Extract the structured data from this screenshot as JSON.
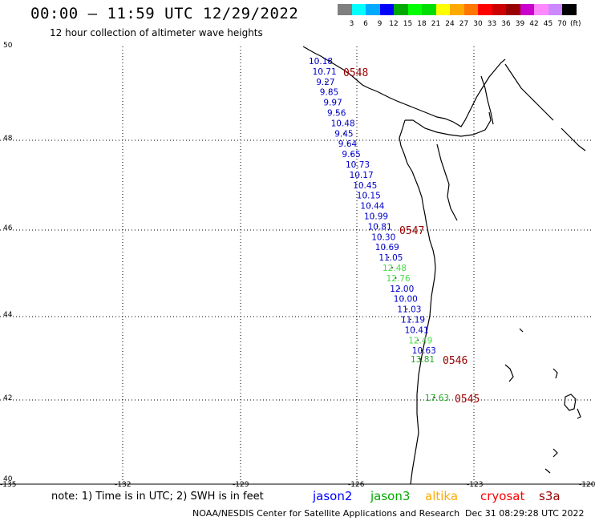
{
  "header": {
    "title": "00:00 – 11:59 UTC 12/29/2022",
    "subtitle": "12 hour collection of altimeter wave heights"
  },
  "scale": {
    "colors": [
      "#7f7f7f",
      "#00ffff",
      "#00aaff",
      "#0000ff",
      "#00aa00",
      "#00ff00",
      "#00dd00",
      "#ffff00",
      "#ffaa00",
      "#ff7700",
      "#ff0000",
      "#cc0000",
      "#990000",
      "#cc00cc",
      "#ff88ff",
      "#cc88ff",
      "#000000"
    ],
    "labels": [
      "3",
      "6",
      "9",
      "12",
      "15",
      "18",
      "21",
      "24",
      "27",
      "30",
      "33",
      "36",
      "39",
      "42",
      "45",
      "70"
    ],
    "unit": "(ft)"
  },
  "axes": {
    "lat_labels": [
      "50",
      "48",
      "46",
      "44",
      "42",
      "40"
    ],
    "lon_labels": [
      "-135",
      "-132",
      "-129",
      "-126",
      "-123",
      "-120"
    ]
  },
  "observations": [
    {
      "v": "10.18",
      "c": "#0000cc"
    },
    {
      "v": "10.71",
      "c": "#0000cc"
    },
    {
      "v": "9.27",
      "c": "#0000cc"
    },
    {
      "v": "9.85",
      "c": "#0000cc"
    },
    {
      "v": "9.97",
      "c": "#0000cc"
    },
    {
      "v": "9.56",
      "c": "#0000cc"
    },
    {
      "v": "10.48",
      "c": "#0000cc"
    },
    {
      "v": "9.45",
      "c": "#0000cc"
    },
    {
      "v": "9.64",
      "c": "#0000cc"
    },
    {
      "v": "9.65",
      "c": "#0000cc"
    },
    {
      "v": "10.73",
      "c": "#0000cc"
    },
    {
      "v": "10.17",
      "c": "#0000cc"
    },
    {
      "v": "10.45",
      "c": "#0000cc"
    },
    {
      "v": "10.15",
      "c": "#0000cc"
    },
    {
      "v": "10.44",
      "c": "#0000cc"
    },
    {
      "v": "10.99",
      "c": "#0000cc"
    },
    {
      "v": "10.81",
      "c": "#0000cc"
    },
    {
      "v": "10.30",
      "c": "#0000cc"
    },
    {
      "v": "10.69",
      "c": "#0000cc"
    },
    {
      "v": "11.05",
      "c": "#0000cc"
    },
    {
      "v": "12.48",
      "c": "#44dd44"
    },
    {
      "v": "12.76",
      "c": "#44dd44"
    },
    {
      "v": "12.00",
      "c": "#0000cc"
    },
    {
      "v": "10.00",
      "c": "#0000cc"
    },
    {
      "v": "11.03",
      "c": "#0000cc"
    },
    {
      "v": "11.19",
      "c": "#0000cc"
    },
    {
      "v": "10.41",
      "c": "#0000cc"
    },
    {
      "v": "12.49",
      "c": "#44dd44"
    },
    {
      "v": "10.63",
      "c": "#0000cc"
    },
    {
      "v": "13.81",
      "c": "#22aa22"
    },
    {
      "v": "17.63",
      "c": "#22aa22"
    }
  ],
  "time_labels": [
    "0548",
    "0547",
    "0546",
    "0545"
  ],
  "note": "note: 1) Time is in UTC; 2) SWH is in feet",
  "satellites": [
    {
      "name": "jason2",
      "color": "#0000ff"
    },
    {
      "name": "jason3",
      "color": "#00aa00"
    },
    {
      "name": "altika",
      "color": "#ffaa00"
    },
    {
      "name": "cryosat",
      "color": "#ff0000"
    },
    {
      "name": "s3a",
      "color": "#990000"
    }
  ],
  "credit": "NOAA/NESDIS Center for Satellite Applications and Research",
  "timestamp": "Dec 31 08:29:28 UTC 2022"
}
